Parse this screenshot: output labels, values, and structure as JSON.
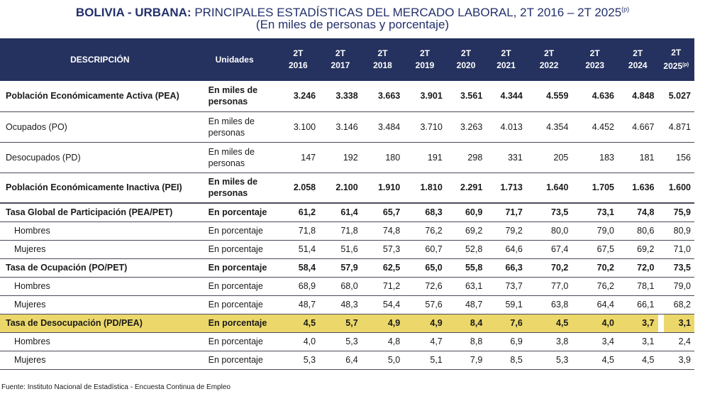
{
  "title": {
    "bold": "BOLIVIA - URBANA:",
    "rest": "PRINCIPALES ESTADÍSTICAS DEL MERCADO LABORAL, 2T 2016 – 2T 2025",
    "sup": "(p)",
    "subtitle": "(En miles de personas y porcentaje)"
  },
  "header": {
    "descripcion": "DESCRIPCIÓN",
    "unidades": "Unidades",
    "years": [
      {
        "q": "2T",
        "y": "2016",
        "sup": ""
      },
      {
        "q": "2T",
        "y": "2017",
        "sup": ""
      },
      {
        "q": "2T",
        "y": "2018",
        "sup": ""
      },
      {
        "q": "2T",
        "y": "2019",
        "sup": ""
      },
      {
        "q": "2T",
        "y": "2020",
        "sup": ""
      },
      {
        "q": "2T",
        "y": "2021",
        "sup": ""
      },
      {
        "q": "2T",
        "y": "2022",
        "sup": ""
      },
      {
        "q": "2T",
        "y": "2023",
        "sup": ""
      },
      {
        "q": "2T",
        "y": "2024",
        "sup": ""
      },
      {
        "q": "2T",
        "y": "2025",
        "sup": "(p)"
      }
    ]
  },
  "rows": [
    {
      "label": "Población Económicamente Activa (PEA)",
      "unit": "En miles de personas",
      "values": [
        "3.246",
        "3.338",
        "3.663",
        "3.901",
        "3.561",
        "4.344",
        "4.559",
        "4.636",
        "4.848",
        "5.027"
      ]
    },
    {
      "label": "Ocupados (PO)",
      "unit": "En miles de personas",
      "values": [
        "3.100",
        "3.146",
        "3.484",
        "3.710",
        "3.263",
        "4.013",
        "4.354",
        "4.452",
        "4.667",
        "4.871"
      ]
    },
    {
      "label": "Desocupados (PD)",
      "unit": "En miles de personas",
      "values": [
        "147",
        "192",
        "180",
        "191",
        "298",
        "331",
        "205",
        "183",
        "181",
        "156"
      ]
    },
    {
      "label": "Población Económicamente Inactiva (PEI)",
      "unit": "En miles de personas",
      "values": [
        "2.058",
        "2.100",
        "1.910",
        "1.810",
        "2.291",
        "1.713",
        "1.640",
        "1.705",
        "1.636",
        "1.600"
      ]
    },
    {
      "label": "Tasa Global de Participación (PEA/PET)",
      "unit": "En porcentaje",
      "values": [
        "61,2",
        "61,4",
        "65,7",
        "68,3",
        "60,9",
        "71,7",
        "73,5",
        "73,1",
        "74,8",
        "75,9"
      ]
    },
    {
      "label": "Hombres",
      "unit": "En porcentaje",
      "values": [
        "71,8",
        "71,8",
        "74,8",
        "76,2",
        "69,2",
        "79,2",
        "80,0",
        "79,0",
        "80,6",
        "80,9"
      ]
    },
    {
      "label": "Mujeres",
      "unit": "En porcentaje",
      "values": [
        "51,4",
        "51,6",
        "57,3",
        "60,7",
        "52,8",
        "64,6",
        "67,4",
        "67,5",
        "69,2",
        "71,0"
      ]
    },
    {
      "label": "Tasa de Ocupación (PO/PET)",
      "unit": "En porcentaje",
      "values": [
        "58,4",
        "57,9",
        "62,5",
        "65,0",
        "55,8",
        "66,3",
        "70,2",
        "70,2",
        "72,0",
        "73,5"
      ]
    },
    {
      "label": "Hombres",
      "unit": "En porcentaje",
      "values": [
        "68,9",
        "68,0",
        "71,2",
        "72,6",
        "63,1",
        "73,7",
        "77,0",
        "76,2",
        "78,1",
        "79,0"
      ]
    },
    {
      "label": "Mujeres",
      "unit": "En porcentaje",
      "values": [
        "48,7",
        "48,3",
        "54,4",
        "57,6",
        "48,7",
        "59,1",
        "63,8",
        "64,4",
        "66,1",
        "68,2"
      ]
    },
    {
      "label": "Tasa de Desocupación (PD/PEA)",
      "unit": "En porcentaje",
      "values": [
        "4,5",
        "5,7",
        "4,9",
        "4,9",
        "8,4",
        "7,6",
        "4,5",
        "4,0",
        "3,7",
        "3,1"
      ]
    },
    {
      "label": "Hombres",
      "unit": "En porcentaje",
      "values": [
        "4,0",
        "5,3",
        "4,8",
        "4,7",
        "8,8",
        "6,9",
        "3,8",
        "3,4",
        "3,1",
        "2,4"
      ]
    },
    {
      "label": "Mujeres",
      "unit": "En porcentaje",
      "values": [
        "5,3",
        "6,4",
        "5,0",
        "5,1",
        "7,9",
        "8,5",
        "5,3",
        "4,5",
        "4,5",
        "3,9"
      ]
    }
  ],
  "colors": {
    "header_bg": "#25325f",
    "title": "#23306b",
    "highlight": "#ecd86a"
  },
  "source": "Fuente: Instituto Nacional de Estadística - Encuesta Continua de Empleo"
}
